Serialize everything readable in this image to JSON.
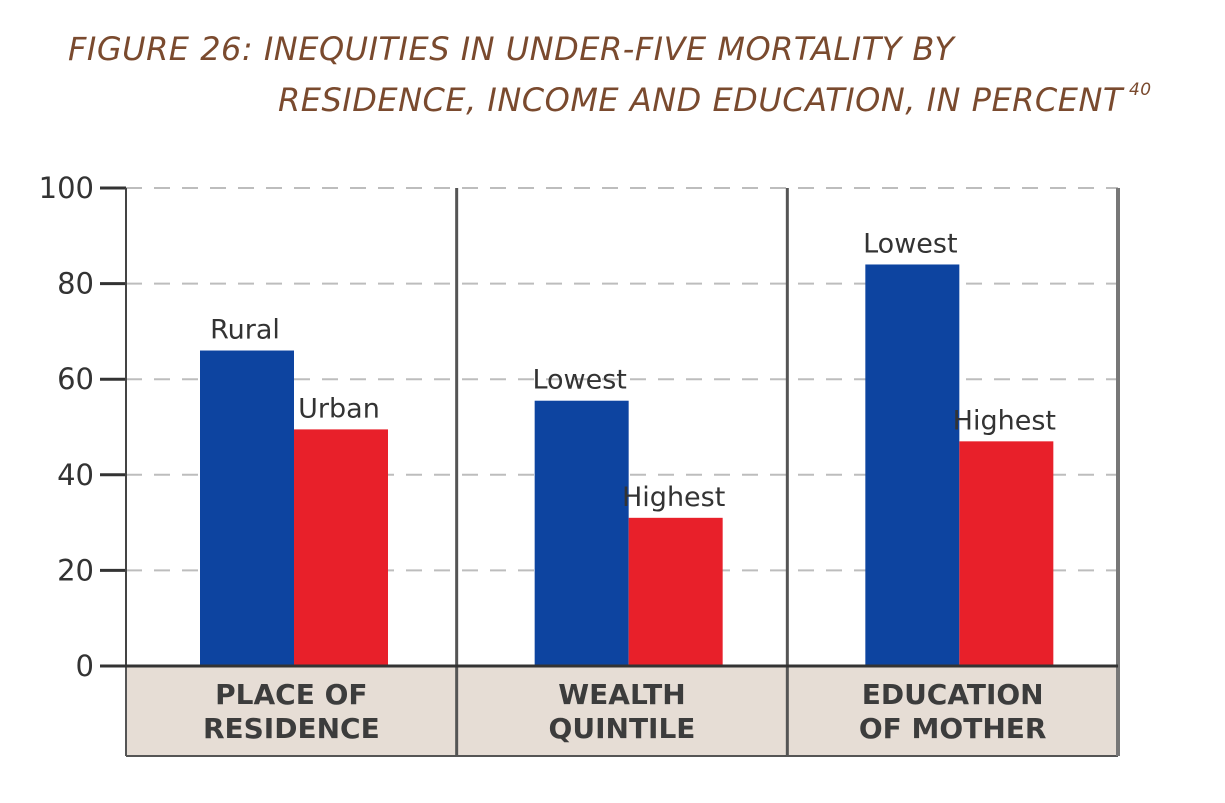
{
  "title": {
    "line1": "FIGURE 26: INEQUITIES IN UNDER-FIVE MORTALITY BY",
    "line2": "RESIDENCE, INCOME AND EDUCATION, IN PERCENT",
    "superscript": "40"
  },
  "colors": {
    "first_bar": "#0d44a0",
    "second_bar": "#e8202a",
    "category_band": "#e6ddd5",
    "title": "#7a4a2e"
  },
  "chart_data": {
    "type": "bar",
    "ylim": [
      0,
      100
    ],
    "yticks": [
      "0",
      "20",
      "40",
      "60",
      "80",
      "100"
    ],
    "grid": true,
    "groups": [
      {
        "category": [
          "PLACE OF",
          "RESIDENCE"
        ],
        "bars": [
          {
            "label": "Rural",
            "value": 66,
            "color": "#0d44a0"
          },
          {
            "label": "Urban",
            "value": 49.5,
            "color": "#e8202a"
          }
        ]
      },
      {
        "category": [
          "WEALTH",
          "QUINTILE"
        ],
        "bars": [
          {
            "label": "Lowest",
            "value": 55.5,
            "color": "#0d44a0"
          },
          {
            "label": "Highest",
            "value": 31,
            "color": "#e8202a"
          }
        ]
      },
      {
        "category": [
          "EDUCATION",
          "OF MOTHER"
        ],
        "bars": [
          {
            "label": "Lowest",
            "value": 84,
            "color": "#0d44a0"
          },
          {
            "label": "Highest",
            "value": 47,
            "color": "#e8202a"
          }
        ]
      }
    ]
  }
}
